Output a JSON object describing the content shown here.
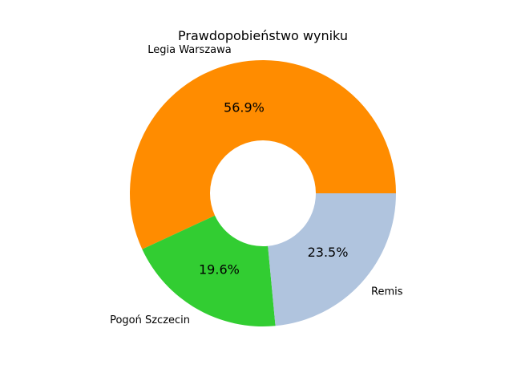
{
  "chart_data": {
    "type": "pie",
    "title": "Prawdopobieństwo wyniku",
    "donut": true,
    "start_angle_deg": 0,
    "direction": "counterclockwise",
    "slices": [
      {
        "label": "Legia Warszawa",
        "value": 56.9,
        "pct_label": "56.9%",
        "color": "#FF8C00"
      },
      {
        "label": "Pogoń Szczecin",
        "value": 19.6,
        "pct_label": "19.6%",
        "color": "#32CD32"
      },
      {
        "label": "Remis",
        "value": 23.5,
        "pct_label": "23.5%",
        "color": "#B0C4DE"
      }
    ]
  }
}
